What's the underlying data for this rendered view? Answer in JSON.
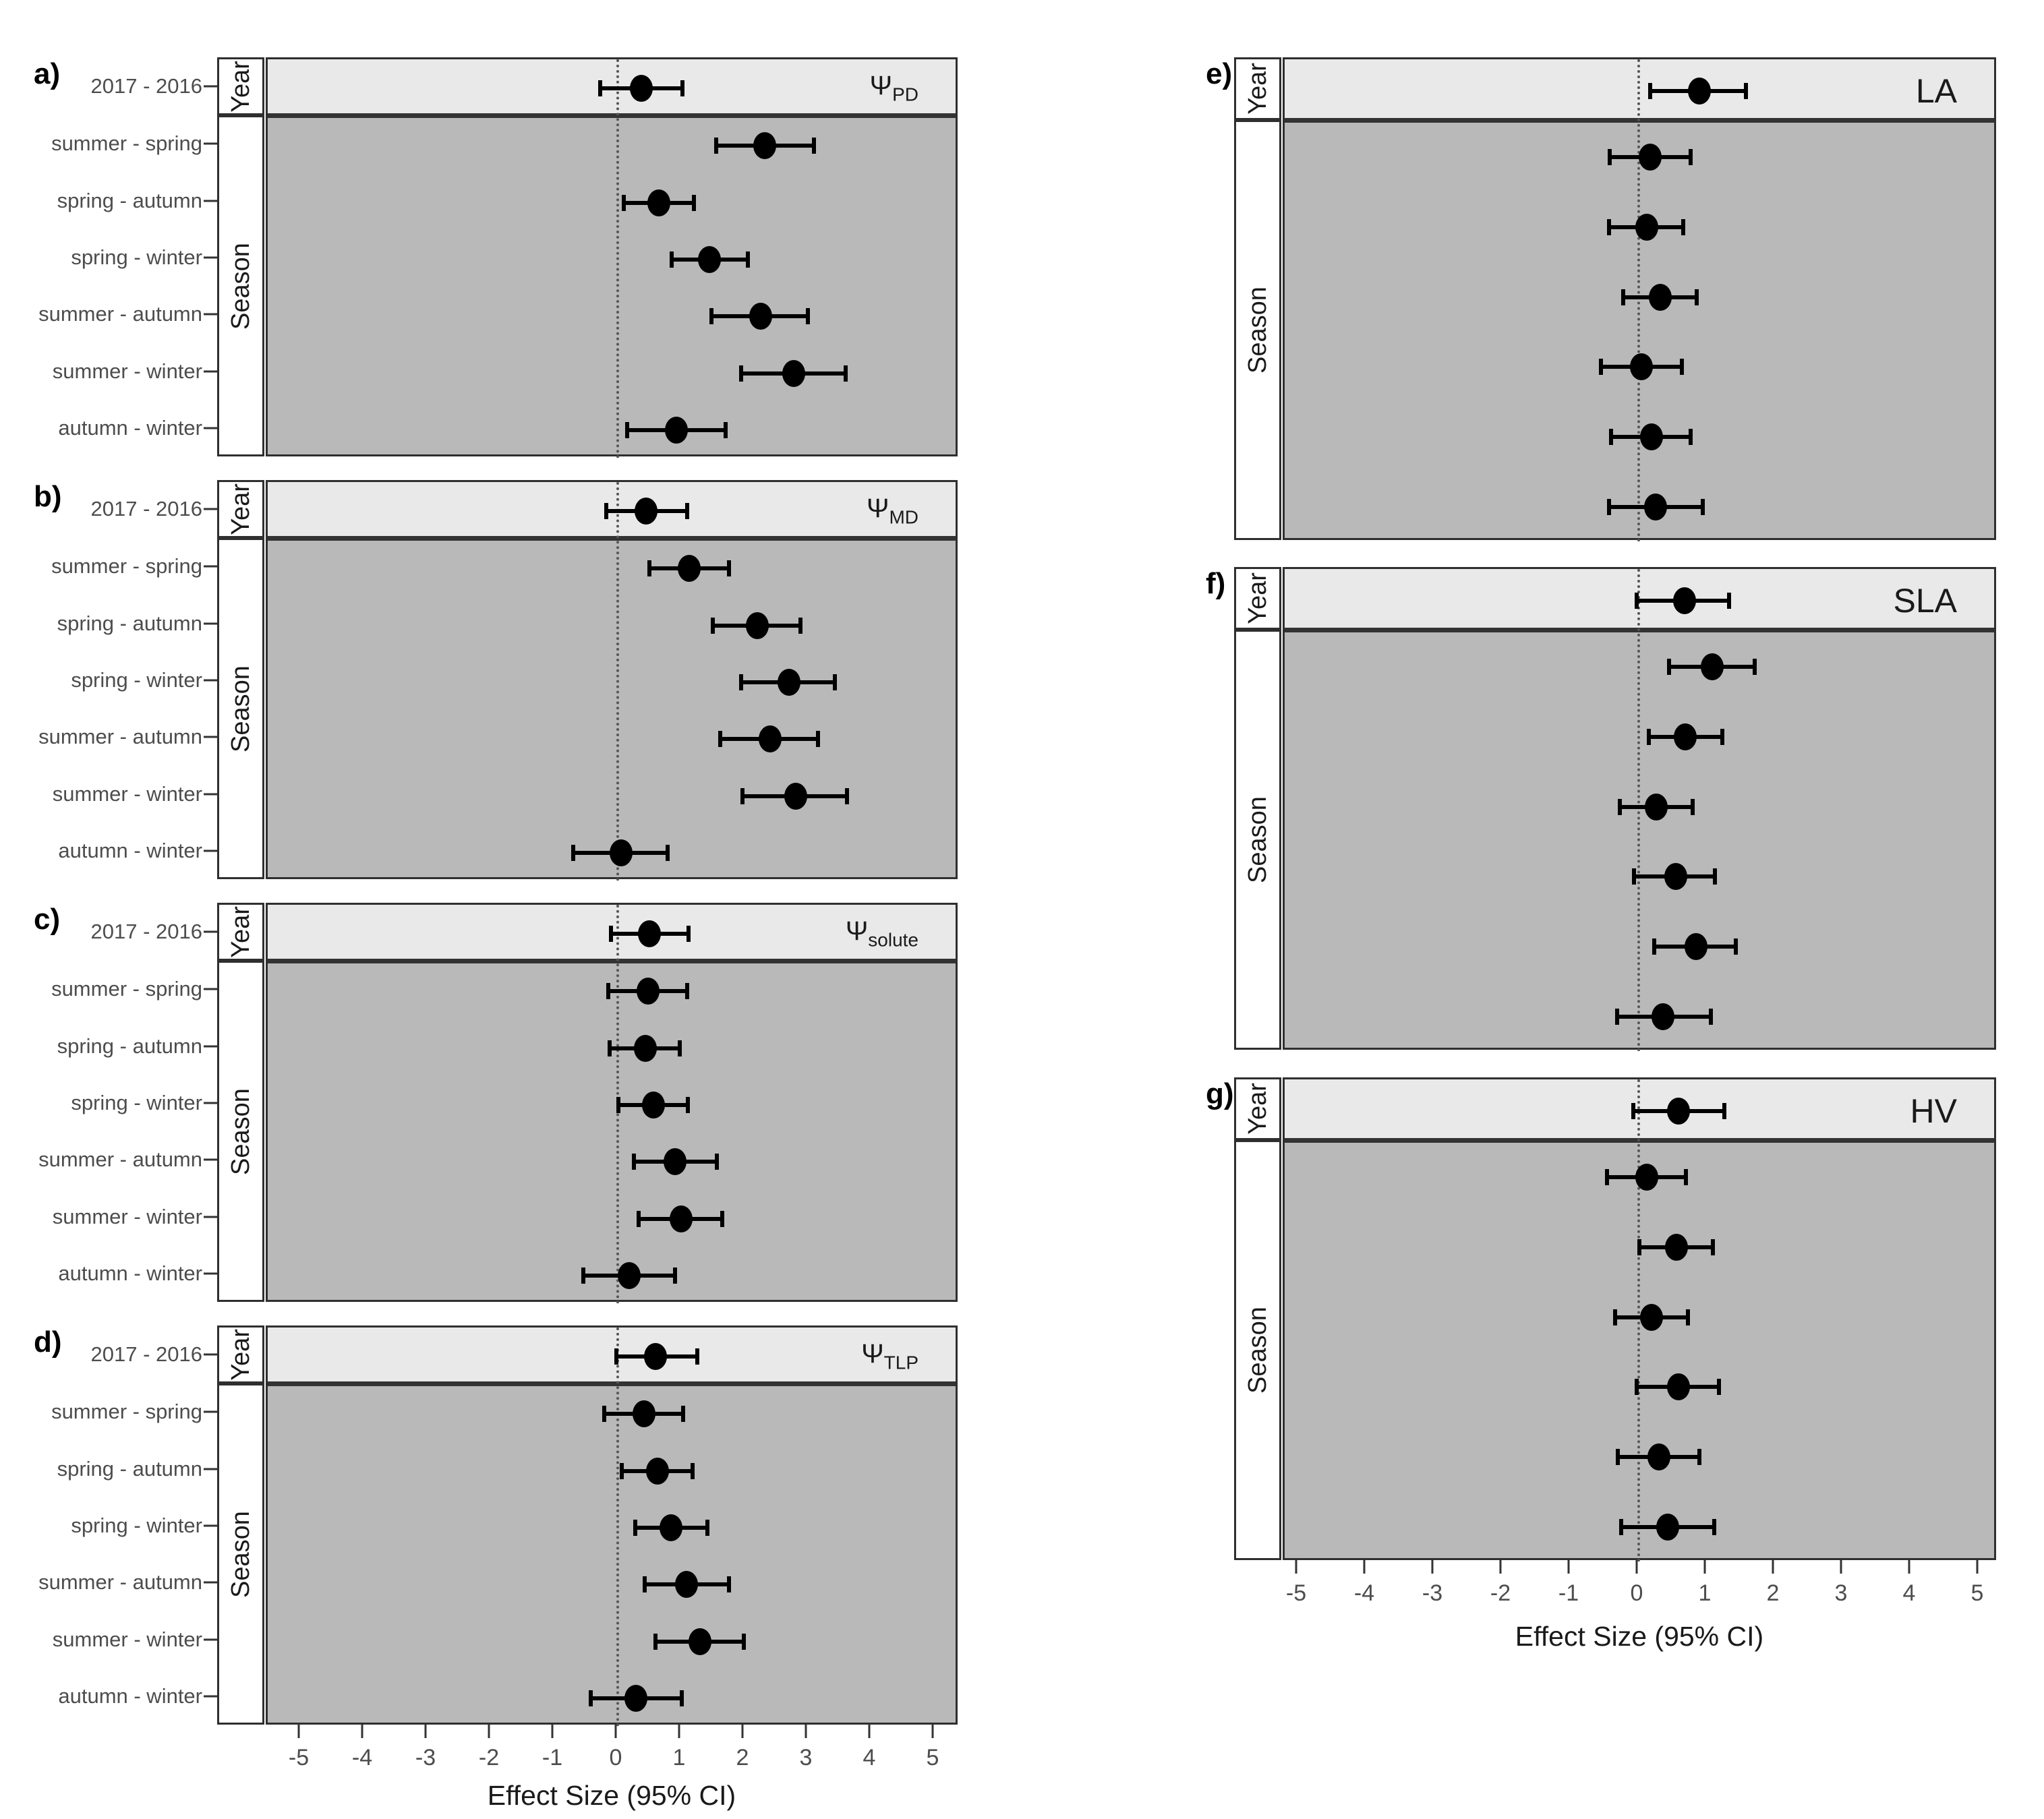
{
  "figure": {
    "axis_label": "Effect Size (95% CI)",
    "x_ticks": [
      -5,
      -4,
      -3,
      -2,
      -1,
      0,
      1,
      2,
      3,
      4,
      5
    ],
    "strip_labels": {
      "year": "Year",
      "season": "Season"
    },
    "row_labels": {
      "year": "2017 - 2016",
      "season": [
        "summer - spring",
        "spring - autumn",
        "spring - winter",
        "summer - autumn",
        "summer - winter",
        "autumn - winter"
      ]
    },
    "colors": {
      "year_band": "#e9e9e9",
      "season_band": "#b9b9b9",
      "strip_bg": "#ffffff",
      "panel_border": "#2f2f2f",
      "point": "#000000",
      "zero_line": "#555555",
      "label_text": "#4d4d4d",
      "title_text": "#1a1a1a"
    }
  },
  "chart_data": {
    "type": "scatter",
    "subtype": "forest-plot-with-error-bars",
    "x_label": "Effect Size (95% CI)",
    "x_range": [
      -5.5,
      5.5
    ],
    "grid": "off",
    "zero_reference_line": 0,
    "categories": [
      "2017 - 2016",
      "summer - spring",
      "spring - autumn",
      "spring - winter",
      "summer - autumn",
      "summer - winter",
      "autumn - winter"
    ],
    "facet_rows": [
      "Year",
      "Season"
    ],
    "panels": [
      {
        "letter": "a)",
        "title_base": "Ψ",
        "title_sub": "PD",
        "column": "left",
        "estimates": [
          0.37,
          2.32,
          0.65,
          1.45,
          2.25,
          2.78,
          0.93
        ],
        "ci_low": [
          -0.28,
          1.55,
          0.1,
          0.85,
          1.48,
          1.95,
          0.15
        ],
        "ci_high": [
          1.02,
          3.1,
          1.2,
          2.05,
          3.0,
          3.6,
          1.7
        ]
      },
      {
        "letter": "b)",
        "title_base": "Ψ",
        "title_sub": "MD",
        "column": "left",
        "estimates": [
          0.45,
          1.13,
          2.2,
          2.7,
          2.4,
          2.81,
          0.05
        ],
        "ci_low": [
          -0.18,
          0.5,
          1.5,
          1.95,
          1.62,
          1.97,
          -0.7
        ],
        "ci_high": [
          1.1,
          1.75,
          2.88,
          3.43,
          3.16,
          3.62,
          0.79
        ]
      },
      {
        "letter": "c)",
        "title_base": "Ψ",
        "title_sub": "solute",
        "column": "left",
        "estimates": [
          0.5,
          0.48,
          0.44,
          0.56,
          0.9,
          1.0,
          0.18
        ],
        "ci_low": [
          -0.11,
          -0.15,
          -0.13,
          0.01,
          0.25,
          0.33,
          -0.54
        ],
        "ci_high": [
          1.12,
          1.1,
          0.98,
          1.11,
          1.56,
          1.65,
          0.9
        ]
      },
      {
        "letter": "d)",
        "title_base": "Ψ",
        "title_sub": "TLP",
        "column": "left",
        "estimates": [
          0.6,
          0.41,
          0.63,
          0.84,
          1.09,
          1.3,
          0.29
        ],
        "ci_low": [
          -0.02,
          -0.21,
          0.06,
          0.28,
          0.43,
          0.6,
          -0.43
        ],
        "ci_high": [
          1.25,
          1.03,
          1.18,
          1.41,
          1.76,
          1.99,
          1.01
        ]
      },
      {
        "letter": "e)",
        "title_base": "LA",
        "title_sub": "",
        "column": "right",
        "estimates": [
          0.89,
          0.17,
          0.12,
          0.32,
          0.04,
          0.19,
          0.25
        ],
        "ci_low": [
          0.17,
          -0.43,
          -0.44,
          -0.23,
          -0.55,
          -0.41,
          -0.44
        ],
        "ci_high": [
          1.57,
          0.76,
          0.65,
          0.85,
          0.63,
          0.76,
          0.94
        ]
      },
      {
        "letter": "f)",
        "title_base": "SLA",
        "title_sub": "",
        "column": "right",
        "estimates": [
          0.67,
          1.08,
          0.68,
          0.26,
          0.54,
          0.84,
          0.36
        ],
        "ci_low": [
          -0.03,
          0.45,
          0.15,
          -0.28,
          -0.07,
          0.23,
          -0.32
        ],
        "ci_high": [
          1.33,
          1.7,
          1.23,
          0.79,
          1.12,
          1.43,
          1.06
        ]
      },
      {
        "letter": "g)",
        "title_base": "HV",
        "title_sub": "",
        "column": "right",
        "estimates": [
          0.58,
          0.12,
          0.55,
          0.19,
          0.58,
          0.3,
          0.43
        ],
        "ci_low": [
          -0.08,
          -0.47,
          0.01,
          -0.35,
          -0.03,
          -0.31,
          -0.26
        ],
        "ci_high": [
          1.26,
          0.69,
          1.09,
          0.72,
          1.18,
          0.89,
          1.11
        ]
      }
    ]
  }
}
